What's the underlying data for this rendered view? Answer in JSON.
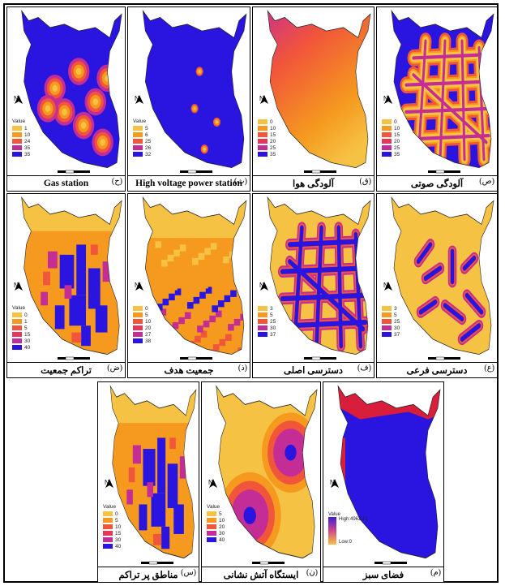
{
  "figure": {
    "panels": [
      {
        "id": "p1",
        "caption": "Gas station",
        "letter": "(ح)",
        "legend_title": "Value",
        "legend": [
          {
            "v": "1",
            "c": "#f6c244"
          },
          {
            "v": "10",
            "c": "#f59a1e"
          },
          {
            "v": "24",
            "c": "#f1553a"
          },
          {
            "v": "35",
            "c": "#c42d96"
          },
          {
            "v": "35",
            "c": "#2a14e0"
          }
        ]
      },
      {
        "id": "p2",
        "caption": "High voltage power station",
        "letter": "(ث)",
        "legend_title": "Value",
        "legend": [
          {
            "v": "5",
            "c": "#f6c244"
          },
          {
            "v": "6",
            "c": "#f59a1e"
          },
          {
            "v": "25",
            "c": "#f1553a"
          },
          {
            "v": "26",
            "c": "#c42d96"
          },
          {
            "v": "32",
            "c": "#2a14e0"
          }
        ]
      },
      {
        "id": "p3",
        "caption": "آلودگی هوا",
        "letter": "(ق)",
        "legend_title": "",
        "legend": [
          {
            "v": "0",
            "c": "#f6c244"
          },
          {
            "v": "10",
            "c": "#f59a1e"
          },
          {
            "v": "15",
            "c": "#f1553a"
          },
          {
            "v": "20",
            "c": "#e8355a"
          },
          {
            "v": "25",
            "c": "#c42d96"
          },
          {
            "v": "35",
            "c": "#2a14e0"
          }
        ]
      },
      {
        "id": "p4",
        "caption": "آلودگی صوتی",
        "letter": "(ص)",
        "legend_title": "",
        "legend": [
          {
            "v": "0",
            "c": "#f6c244"
          },
          {
            "v": "10",
            "c": "#f59a1e"
          },
          {
            "v": "15",
            "c": "#f1553a"
          },
          {
            "v": "20",
            "c": "#e8355a"
          },
          {
            "v": "25",
            "c": "#c42d96"
          },
          {
            "v": "35",
            "c": "#2a14e0"
          }
        ]
      },
      {
        "id": "p5",
        "caption": "تراکم جمعیت",
        "letter": "(ض)",
        "legend_title": "Value",
        "legend": [
          {
            "v": "0",
            "c": "#f6c244"
          },
          {
            "v": "1",
            "c": "#f59a1e"
          },
          {
            "v": "5",
            "c": "#f1553a"
          },
          {
            "v": "15",
            "c": "#e8355a"
          },
          {
            "v": "30",
            "c": "#c42d96"
          },
          {
            "v": "40",
            "c": "#2a14e0"
          }
        ]
      },
      {
        "id": "p6",
        "caption": "جمعیت هدف",
        "letter": "(ذ)",
        "legend_title": "",
        "legend": [
          {
            "v": "0",
            "c": "#f6c244"
          },
          {
            "v": "5",
            "c": "#f59a1e"
          },
          {
            "v": "10",
            "c": "#f1553a"
          },
          {
            "v": "20",
            "c": "#e8355a"
          },
          {
            "v": "27",
            "c": "#c42d96"
          },
          {
            "v": "38",
            "c": "#2a14e0"
          }
        ]
      },
      {
        "id": "p7",
        "caption": "دسترسی اصلی",
        "letter": "(ف)",
        "legend_title": "",
        "legend": [
          {
            "v": "3",
            "c": "#f6c244"
          },
          {
            "v": "5",
            "c": "#f59a1e"
          },
          {
            "v": "25",
            "c": "#f1553a"
          },
          {
            "v": "30",
            "c": "#c42d96"
          },
          {
            "v": "37",
            "c": "#2a14e0"
          }
        ]
      },
      {
        "id": "p8",
        "caption": "دسترسی فرعی",
        "letter": "(ع)",
        "legend_title": "",
        "legend": [
          {
            "v": "3",
            "c": "#f6c244"
          },
          {
            "v": "5",
            "c": "#f59a1e"
          },
          {
            "v": "25",
            "c": "#f1553a"
          },
          {
            "v": "30",
            "c": "#c42d96"
          },
          {
            "v": "37",
            "c": "#2a14e0"
          }
        ]
      },
      {
        "id": "p9",
        "caption": "مناطق پر تراکم",
        "letter": "(س)",
        "legend_title": "Value",
        "legend": [
          {
            "v": "0",
            "c": "#f6c244"
          },
          {
            "v": "5",
            "c": "#f59a1e"
          },
          {
            "v": "10",
            "c": "#f1553a"
          },
          {
            "v": "15",
            "c": "#e8355a"
          },
          {
            "v": "30",
            "c": "#c42d96"
          },
          {
            "v": "40",
            "c": "#2a14e0"
          }
        ]
      },
      {
        "id": "p10",
        "caption": "ایستگاه آتش نشانی",
        "letter": "(ن)",
        "legend_title": "Value",
        "legend": [
          {
            "v": "5",
            "c": "#f6c244"
          },
          {
            "v": "10",
            "c": "#f59a1e"
          },
          {
            "v": "20",
            "c": "#f1553a"
          },
          {
            "v": "30",
            "c": "#c42d96"
          },
          {
            "v": "40",
            "c": "#2a14e0"
          }
        ]
      },
      {
        "id": "p11",
        "caption": "فضای سبز",
        "letter": "(م)",
        "legend_title": "Value",
        "high": "High:4962.71",
        "low": "Low:0"
      }
    ],
    "north_label": "N"
  },
  "colors": {
    "blue": "#2a14e0",
    "yellow": "#f6c244",
    "orange": "#f59a1e",
    "red": "#f1553a",
    "magenta": "#c42d96"
  }
}
